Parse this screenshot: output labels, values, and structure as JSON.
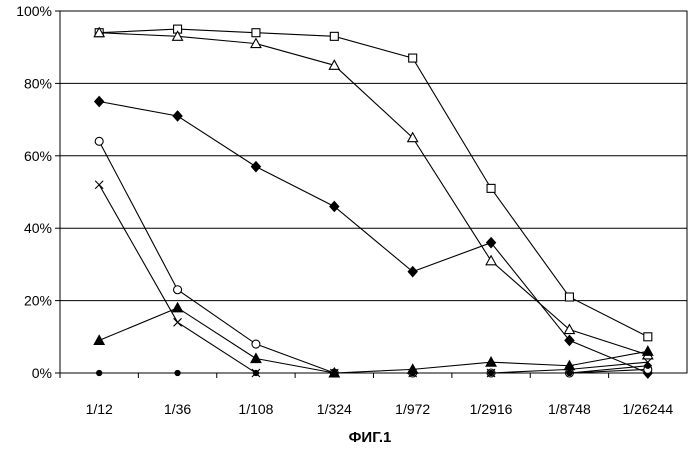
{
  "chart_data": {
    "type": "line",
    "title": "",
    "caption": "ФИГ.1",
    "xlabel": "",
    "ylabel": "",
    "categories": [
      "1/12",
      "1/36",
      "1/108",
      "1/324",
      "1/972",
      "1/2916",
      "1/8748",
      "1/26244"
    ],
    "yticks": [
      "0%",
      "20%",
      "40%",
      "60%",
      "80%",
      "100%"
    ],
    "ylim": [
      0,
      100
    ],
    "grid": "horizontal",
    "legend": "none",
    "series": [
      {
        "marker": "open-square",
        "values": [
          94,
          95,
          94,
          93,
          87,
          51,
          21,
          10
        ]
      },
      {
        "marker": "open-triangle",
        "values": [
          94,
          93,
          91,
          85,
          65,
          31,
          12,
          5
        ]
      },
      {
        "marker": "filled-diamond",
        "values": [
          75,
          71,
          57,
          46,
          28,
          36,
          9,
          0
        ]
      },
      {
        "marker": "open-circle",
        "values": [
          64,
          23,
          8,
          0,
          0,
          0,
          0,
          1
        ]
      },
      {
        "marker": "cross",
        "values": [
          52,
          14,
          0,
          0,
          0,
          0,
          1,
          3
        ]
      },
      {
        "marker": "filled-triangle",
        "values": [
          9,
          18,
          4,
          0,
          1,
          3,
          2,
          6
        ]
      },
      {
        "marker": "filled-circle",
        "values": [
          0,
          0,
          0,
          0,
          0,
          0,
          0,
          2
        ]
      }
    ]
  }
}
